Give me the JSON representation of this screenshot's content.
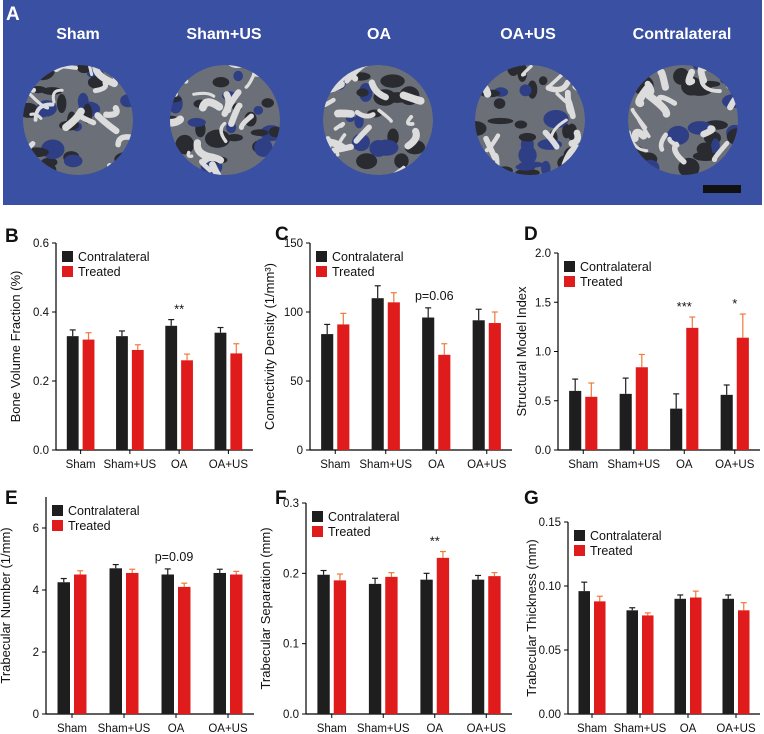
{
  "panel_a": {
    "letter": "A",
    "samples": [
      "Sham",
      "Sham+US",
      "OA",
      "OA+US",
      "Contralateral"
    ],
    "background_color": "#3a50a3"
  },
  "colors": {
    "contralateral": "#1e1e1e",
    "treated": "#e01b1b",
    "error_treated": "#f07a3a"
  },
  "chart_data": [
    {
      "letter": "B",
      "type": "bar",
      "ylabel": "Bone Volume Fraction (%)",
      "categories": [
        "Sham",
        "Sham+US",
        "OA",
        "OA+US"
      ],
      "ylim": [
        0,
        0.6
      ],
      "yticks": [
        "0.0",
        "0.2",
        "0.4",
        "0.6"
      ],
      "legend": "top-left",
      "series": [
        {
          "name": "Contralateral",
          "values": [
            0.33,
            0.33,
            0.36,
            0.34
          ],
          "errors": [
            0.018,
            0.015,
            0.018,
            0.015
          ]
        },
        {
          "name": "Treated",
          "values": [
            0.32,
            0.29,
            0.26,
            0.28
          ],
          "errors": [
            0.02,
            0.015,
            0.018,
            0.028
          ]
        }
      ],
      "annotations": [
        {
          "text": "**",
          "category": 2
        }
      ]
    },
    {
      "letter": "C",
      "type": "bar",
      "ylabel": "Connectivity Density (1/mm³)",
      "categories": [
        "Sham",
        "Sham+US",
        "OA",
        "OA+US"
      ],
      "ylim": [
        0,
        150
      ],
      "yticks": [
        "0",
        "50",
        "100",
        "150"
      ],
      "legend": "top-left",
      "series": [
        {
          "name": "Contralateral",
          "values": [
            84,
            110,
            96,
            94
          ],
          "errors": [
            7,
            9,
            7,
            8
          ]
        },
        {
          "name": "Treated",
          "values": [
            91,
            107,
            69,
            92
          ],
          "errors": [
            8,
            7,
            8,
            8
          ]
        }
      ],
      "annotations": [
        {
          "text": "p=0.06",
          "category": 2
        }
      ]
    },
    {
      "letter": "D",
      "type": "bar",
      "ylabel": "Structural Model Index",
      "categories": [
        "Sham",
        "Sham+US",
        "OA",
        "OA+US"
      ],
      "ylim": [
        0,
        2.0
      ],
      "yticks": [
        "0.0",
        "0.5",
        "1.0",
        "1.5",
        "2.0"
      ],
      "legend": "top-left",
      "series": [
        {
          "name": "Contralateral",
          "values": [
            0.6,
            0.57,
            0.42,
            0.56
          ],
          "errors": [
            0.12,
            0.16,
            0.15,
            0.1
          ]
        },
        {
          "name": "Treated",
          "values": [
            0.54,
            0.84,
            1.24,
            1.14
          ],
          "errors": [
            0.14,
            0.13,
            0.11,
            0.24
          ]
        }
      ],
      "annotations": [
        {
          "text": "***",
          "category": 2
        },
        {
          "text": "*",
          "category": 3
        }
      ]
    },
    {
      "letter": "E",
      "type": "bar",
      "ylabel": "Trabecular Number (1/mm)",
      "categories": [
        "Sham",
        "Sham+US",
        "OA",
        "OA+US"
      ],
      "ylim": [
        0,
        7
      ],
      "yticks": [
        "0",
        "2",
        "4",
        "6"
      ],
      "legend": "top-left",
      "series": [
        {
          "name": "Contralateral",
          "values": [
            4.25,
            4.7,
            4.5,
            4.55
          ],
          "errors": [
            0.12,
            0.12,
            0.18,
            0.12
          ]
        },
        {
          "name": "Treated",
          "values": [
            4.5,
            4.55,
            4.1,
            4.5
          ],
          "errors": [
            0.12,
            0.12,
            0.12,
            0.1
          ]
        }
      ],
      "annotations": [
        {
          "text": "p=0.09",
          "category": 2
        }
      ]
    },
    {
      "letter": "F",
      "type": "bar",
      "ylabel": "Trabecular Separation (mm)",
      "categories": [
        "Sham",
        "Sham+US",
        "OA",
        "OA+US"
      ],
      "ylim": [
        0,
        0.3
      ],
      "yticks": [
        "0.0",
        "0.1",
        "0.2",
        "0.3"
      ],
      "legend": "top-left",
      "series": [
        {
          "name": "Contralateral",
          "values": [
            0.198,
            0.185,
            0.191,
            0.191
          ],
          "errors": [
            0.006,
            0.008,
            0.009,
            0.006
          ]
        },
        {
          "name": "Treated",
          "values": [
            0.19,
            0.195,
            0.222,
            0.196
          ],
          "errors": [
            0.009,
            0.006,
            0.009,
            0.005
          ]
        }
      ],
      "annotations": [
        {
          "text": "**",
          "category": 2
        }
      ]
    },
    {
      "letter": "G",
      "type": "bar",
      "ylabel": "Trabecular Thickness (mm)",
      "categories": [
        "Sham",
        "Sham+US",
        "OA",
        "OA+US"
      ],
      "ylim": [
        0,
        0.15
      ],
      "yticks": [
        "0.00",
        "0.05",
        "0.10",
        "0.15"
      ],
      "legend": "top-left",
      "series": [
        {
          "name": "Contralateral",
          "values": [
            0.096,
            0.081,
            0.09,
            0.09
          ],
          "errors": [
            0.007,
            0.002,
            0.003,
            0.003
          ]
        },
        {
          "name": "Treated",
          "values": [
            0.088,
            0.077,
            0.091,
            0.081
          ],
          "errors": [
            0.004,
            0.002,
            0.005,
            0.006
          ]
        }
      ],
      "annotations": []
    }
  ]
}
